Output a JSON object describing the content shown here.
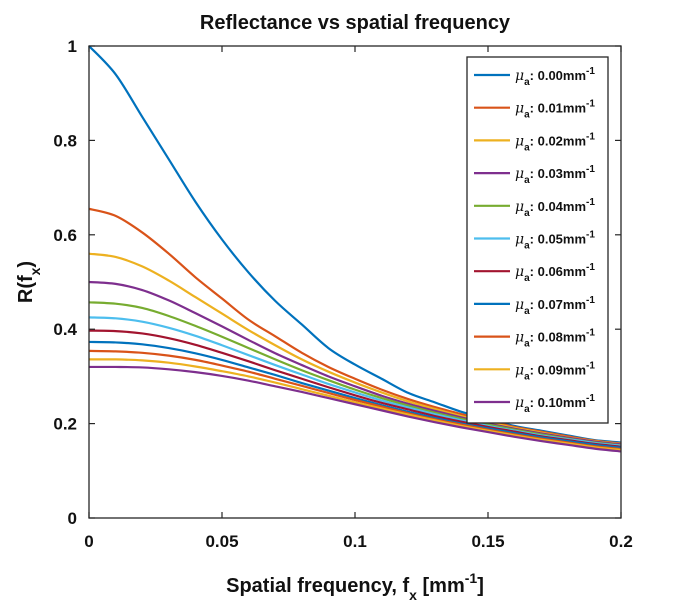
{
  "chart_data": {
    "type": "line",
    "title": "Reflectance vs spatial frequency",
    "xlabel": {
      "base": "Spatial frequency, f",
      "sub": "x",
      "mid": " [mm",
      "sup": "-1",
      "end": "]"
    },
    "ylabel": {
      "base": "R(f",
      "sub": "x",
      "end": ")"
    },
    "xlim": [
      0,
      0.2
    ],
    "ylim": [
      0,
      1
    ],
    "xticks": [
      "0",
      "0.05",
      "0.1",
      "0.15",
      "0.2"
    ],
    "yticks": [
      "0",
      "0.2",
      "0.4",
      "0.6",
      "0.8",
      "1"
    ],
    "legend_position": "top-right",
    "grid": false,
    "legend_symbol": "μ",
    "legend_subscript": "a",
    "legend_unit": "mm",
    "legend_unit_sup": "-1",
    "x": [
      0,
      0.01,
      0.02,
      0.03,
      0.04,
      0.05,
      0.06,
      0.07,
      0.08,
      0.09,
      0.1,
      0.11,
      0.12,
      0.13,
      0.14,
      0.15,
      0.16,
      0.17,
      0.18,
      0.19,
      0.2
    ],
    "series": [
      {
        "name": ": 0.00mm",
        "color": "#0072BD",
        "values": [
          1.0,
          0.94,
          0.85,
          0.76,
          0.67,
          0.59,
          0.52,
          0.46,
          0.41,
          0.36,
          0.325,
          0.295,
          0.265,
          0.245,
          0.225,
          0.21,
          0.195,
          0.185,
          0.175,
          0.165,
          0.16
        ]
      },
      {
        "name": ": 0.01mm",
        "color": "#D95319",
        "values": [
          0.655,
          0.64,
          0.605,
          0.56,
          0.51,
          0.465,
          0.42,
          0.385,
          0.35,
          0.32,
          0.295,
          0.272,
          0.252,
          0.235,
          0.22,
          0.206,
          0.193,
          0.183,
          0.173,
          0.164,
          0.158
        ]
      },
      {
        "name": ": 0.02mm",
        "color": "#EDB120",
        "values": [
          0.56,
          0.553,
          0.533,
          0.503,
          0.468,
          0.433,
          0.398,
          0.366,
          0.336,
          0.31,
          0.287,
          0.266,
          0.247,
          0.231,
          0.216,
          0.203,
          0.191,
          0.181,
          0.171,
          0.163,
          0.157
        ]
      },
      {
        "name": ": 0.03mm",
        "color": "#7E2F8E",
        "values": [
          0.5,
          0.496,
          0.483,
          0.461,
          0.434,
          0.406,
          0.377,
          0.349,
          0.324,
          0.3,
          0.279,
          0.259,
          0.242,
          0.227,
          0.213,
          0.2,
          0.189,
          0.179,
          0.17,
          0.162,
          0.156
        ]
      },
      {
        "name": ": 0.04mm",
        "color": "#77AC30",
        "values": [
          0.457,
          0.454,
          0.445,
          0.428,
          0.407,
          0.384,
          0.36,
          0.336,
          0.313,
          0.292,
          0.272,
          0.254,
          0.238,
          0.223,
          0.21,
          0.198,
          0.187,
          0.177,
          0.168,
          0.16,
          0.154
        ]
      },
      {
        "name": ": 0.05mm",
        "color": "#4DBEEE",
        "values": [
          0.425,
          0.423,
          0.416,
          0.403,
          0.386,
          0.366,
          0.345,
          0.324,
          0.304,
          0.284,
          0.266,
          0.249,
          0.234,
          0.22,
          0.207,
          0.195,
          0.185,
          0.175,
          0.167,
          0.159,
          0.153
        ]
      },
      {
        "name": ": 0.06mm",
        "color": "#A2142F",
        "values": [
          0.397,
          0.396,
          0.391,
          0.381,
          0.367,
          0.35,
          0.332,
          0.313,
          0.295,
          0.277,
          0.26,
          0.244,
          0.23,
          0.216,
          0.204,
          0.193,
          0.183,
          0.173,
          0.165,
          0.157,
          0.151
        ]
      },
      {
        "name": ": 0.07mm",
        "color": "#0072BD",
        "values": [
          0.373,
          0.372,
          0.368,
          0.36,
          0.349,
          0.335,
          0.319,
          0.303,
          0.286,
          0.27,
          0.254,
          0.239,
          0.225,
          0.212,
          0.2,
          0.19,
          0.18,
          0.171,
          0.163,
          0.155,
          0.149
        ]
      },
      {
        "name": ": 0.08mm",
        "color": "#D95319",
        "values": [
          0.354,
          0.353,
          0.35,
          0.344,
          0.335,
          0.323,
          0.31,
          0.295,
          0.28,
          0.265,
          0.25,
          0.236,
          0.222,
          0.209,
          0.198,
          0.187,
          0.177,
          0.168,
          0.16,
          0.152,
          0.146
        ]
      },
      {
        "name": ": 0.09mm",
        "color": "#EDB120",
        "values": [
          0.336,
          0.336,
          0.334,
          0.329,
          0.321,
          0.311,
          0.3,
          0.287,
          0.273,
          0.259,
          0.245,
          0.232,
          0.219,
          0.207,
          0.195,
          0.185,
          0.175,
          0.166,
          0.158,
          0.15,
          0.144
        ]
      },
      {
        "name": ": 0.10mm",
        "color": "#7E2F8E",
        "values": [
          0.32,
          0.32,
          0.319,
          0.315,
          0.309,
          0.301,
          0.291,
          0.279,
          0.267,
          0.254,
          0.241,
          0.228,
          0.215,
          0.203,
          0.192,
          0.182,
          0.172,
          0.163,
          0.155,
          0.147,
          0.141
        ]
      }
    ]
  }
}
